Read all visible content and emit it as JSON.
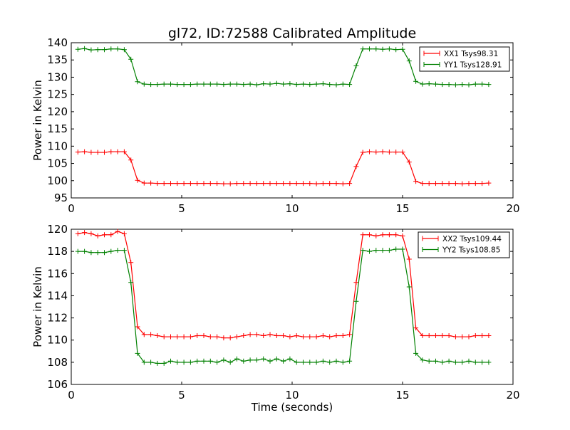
{
  "figure": {
    "title": "gl72, ID:72588 Calibrated Amplitude"
  },
  "chart_data": [
    {
      "type": "line",
      "title": "gl72, ID:72588 Calibrated Amplitude",
      "xlabel": "",
      "ylabel": "Power in Kelvin",
      "xlim": [
        0,
        20
      ],
      "ylim": [
        95,
        140
      ],
      "xticks": [
        0,
        5,
        10,
        15,
        20
      ],
      "yticks": [
        95,
        100,
        105,
        110,
        115,
        120,
        125,
        130,
        135,
        140
      ],
      "grid": false,
      "legend_position": "top-right",
      "marker": "+",
      "x": [
        0.3,
        0.6,
        0.9,
        1.2,
        1.5,
        1.8,
        2.1,
        2.4,
        2.7,
        3.0,
        3.3,
        3.6,
        3.9,
        4.2,
        4.5,
        4.8,
        5.1,
        5.4,
        5.7,
        6.0,
        6.3,
        6.6,
        6.9,
        7.2,
        7.5,
        7.8,
        8.1,
        8.4,
        8.7,
        9.0,
        9.3,
        9.6,
        9.9,
        10.2,
        10.5,
        10.8,
        11.1,
        11.4,
        11.7,
        12.0,
        12.3,
        12.6,
        12.9,
        13.2,
        13.5,
        13.8,
        14.1,
        14.4,
        14.7,
        15.0,
        15.3,
        15.6,
        15.9,
        16.2,
        16.5,
        16.8,
        17.1,
        17.4,
        17.7,
        18.0,
        18.3,
        18.6,
        18.9
      ],
      "series": [
        {
          "name": "XX1 Tsys98.31",
          "color": "#ff0000",
          "values": [
            108.3,
            108.4,
            108.2,
            108.2,
            108.2,
            108.4,
            108.4,
            108.4,
            106.0,
            100.1,
            99.3,
            99.3,
            99.2,
            99.2,
            99.2,
            99.2,
            99.2,
            99.2,
            99.2,
            99.2,
            99.2,
            99.2,
            99.1,
            99.1,
            99.2,
            99.2,
            99.2,
            99.2,
            99.2,
            99.2,
            99.2,
            99.2,
            99.2,
            99.2,
            99.2,
            99.2,
            99.1,
            99.2,
            99.2,
            99.2,
            99.1,
            99.2,
            104.1,
            108.2,
            108.4,
            108.3,
            108.4,
            108.3,
            108.3,
            108.3,
            105.4,
            99.8,
            99.2,
            99.2,
            99.2,
            99.2,
            99.2,
            99.2,
            99.1,
            99.2,
            99.2,
            99.2,
            99.3
          ]
        },
        {
          "name": "YY1 Tsys128.91",
          "color": "#008000",
          "values": [
            138.1,
            138.3,
            137.9,
            138.0,
            138.0,
            138.2,
            138.2,
            138.0,
            135.2,
            128.7,
            128.0,
            127.9,
            127.9,
            128.0,
            128.0,
            127.9,
            127.9,
            127.9,
            128.0,
            128.0,
            128.0,
            128.0,
            127.9,
            128.0,
            128.0,
            127.9,
            128.0,
            127.8,
            128.1,
            128.0,
            128.2,
            128.0,
            128.1,
            127.9,
            128.0,
            127.9,
            128.0,
            128.1,
            127.9,
            127.8,
            128.0,
            127.9,
            133.3,
            138.2,
            138.2,
            138.2,
            138.1,
            138.2,
            138.0,
            138.1,
            134.7,
            128.8,
            128.0,
            128.1,
            128.0,
            127.9,
            127.9,
            127.8,
            127.9,
            127.8,
            128.0,
            128.0,
            127.9
          ]
        }
      ]
    },
    {
      "type": "line",
      "title": "",
      "xlabel": "Time (seconds)",
      "ylabel": "Power in Kelvin",
      "xlim": [
        0,
        20
      ],
      "ylim": [
        106,
        120
      ],
      "xticks": [
        0,
        5,
        10,
        15,
        20
      ],
      "yticks": [
        106,
        108,
        110,
        112,
        114,
        116,
        118,
        120
      ],
      "grid": false,
      "legend_position": "top-right",
      "marker": "+",
      "x": [
        0.3,
        0.6,
        0.9,
        1.2,
        1.5,
        1.8,
        2.1,
        2.4,
        2.7,
        3.0,
        3.3,
        3.6,
        3.9,
        4.2,
        4.5,
        4.8,
        5.1,
        5.4,
        5.7,
        6.0,
        6.3,
        6.6,
        6.9,
        7.2,
        7.5,
        7.8,
        8.1,
        8.4,
        8.7,
        9.0,
        9.3,
        9.6,
        9.9,
        10.2,
        10.5,
        10.8,
        11.1,
        11.4,
        11.7,
        12.0,
        12.3,
        12.6,
        12.9,
        13.2,
        13.5,
        13.8,
        14.1,
        14.4,
        14.7,
        15.0,
        15.3,
        15.6,
        15.9,
        16.2,
        16.5,
        16.8,
        17.1,
        17.4,
        17.7,
        18.0,
        18.3,
        18.6,
        18.9
      ],
      "series": [
        {
          "name": "XX2 Tsys109.44",
          "color": "#ff0000",
          "values": [
            119.6,
            119.7,
            119.6,
            119.4,
            119.5,
            119.5,
            119.8,
            119.6,
            117.0,
            111.2,
            110.5,
            110.5,
            110.4,
            110.3,
            110.3,
            110.3,
            110.3,
            110.3,
            110.4,
            110.4,
            110.3,
            110.3,
            110.2,
            110.2,
            110.3,
            110.4,
            110.5,
            110.5,
            110.4,
            110.5,
            110.4,
            110.4,
            110.3,
            110.4,
            110.3,
            110.3,
            110.3,
            110.4,
            110.3,
            110.4,
            110.4,
            110.5,
            115.2,
            119.5,
            119.5,
            119.4,
            119.5,
            119.5,
            119.5,
            119.4,
            117.3,
            111.1,
            110.4,
            110.4,
            110.4,
            110.4,
            110.4,
            110.3,
            110.3,
            110.3,
            110.4,
            110.4,
            110.4
          ]
        },
        {
          "name": "YY2 Tsys108.85",
          "color": "#008000",
          "values": [
            118.0,
            118.0,
            117.9,
            117.9,
            117.9,
            118.0,
            118.1,
            118.1,
            115.2,
            108.8,
            108.0,
            108.0,
            107.9,
            107.9,
            108.1,
            108.0,
            108.0,
            108.0,
            108.1,
            108.1,
            108.1,
            108.0,
            108.2,
            108.0,
            108.3,
            108.1,
            108.2,
            108.2,
            108.3,
            108.1,
            108.3,
            108.1,
            108.3,
            108.0,
            108.0,
            108.0,
            108.0,
            108.1,
            108.0,
            108.1,
            108.0,
            108.1,
            113.5,
            118.1,
            118.0,
            118.1,
            118.1,
            118.1,
            118.2,
            118.2,
            114.8,
            108.8,
            108.2,
            108.1,
            108.1,
            108.0,
            108.1,
            108.0,
            108.0,
            108.1,
            108.0,
            108.0,
            108.0
          ]
        }
      ]
    }
  ]
}
